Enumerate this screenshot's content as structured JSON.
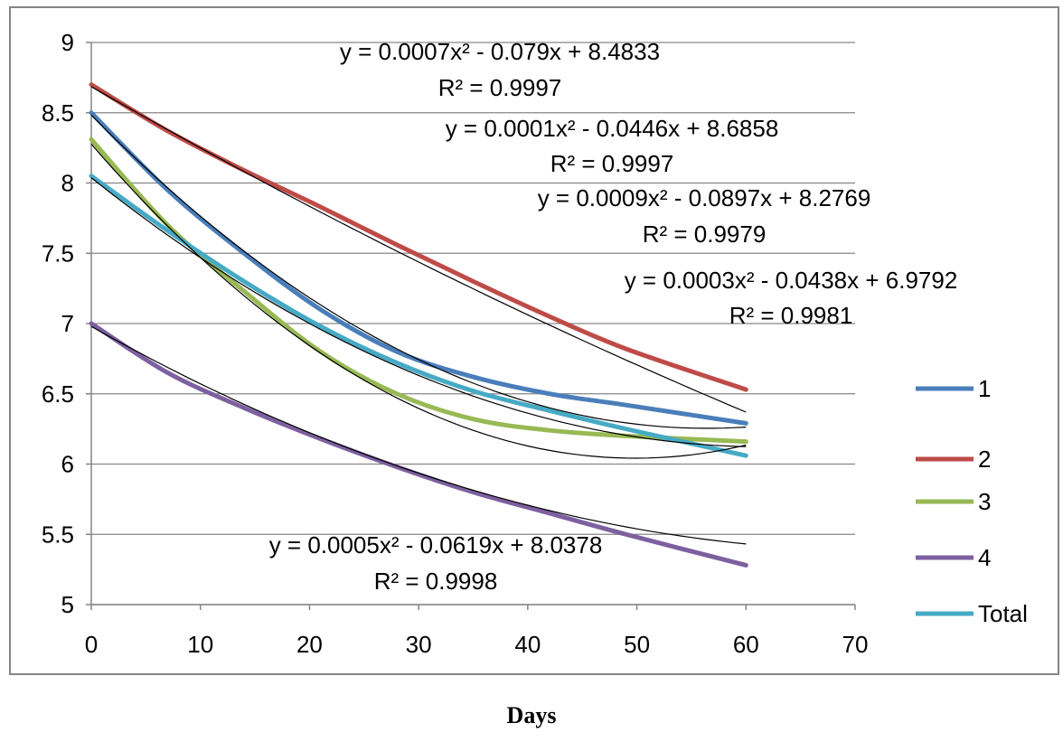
{
  "chart_data": {
    "type": "line",
    "xlabel": "Days",
    "ylabel": "",
    "xlim": [
      0,
      70
    ],
    "ylim": [
      5,
      9
    ],
    "x_ticks": [
      0,
      10,
      20,
      30,
      40,
      50,
      60,
      70
    ],
    "y_ticks": [
      5,
      5.5,
      6,
      6.5,
      7,
      7.5,
      8,
      8.5,
      9
    ],
    "grid": "horizontal",
    "legend_position": "right",
    "series": [
      {
        "name": "1",
        "color": "#4A7EBB",
        "x": [
          0,
          7,
          14,
          21,
          28,
          35,
          42,
          49,
          60
        ],
        "y": [
          8.5,
          7.95,
          7.5,
          7.1,
          6.8,
          6.62,
          6.5,
          6.42,
          6.29
        ]
      },
      {
        "name": "2",
        "color": "#BE4B48",
        "x": [
          0,
          7,
          14,
          21,
          28,
          35,
          42,
          49,
          60
        ],
        "y": [
          8.7,
          8.37,
          8.09,
          7.83,
          7.56,
          7.3,
          7.05,
          6.82,
          6.53
        ]
      },
      {
        "name": "3",
        "color": "#98B954",
        "x": [
          0,
          7,
          14,
          21,
          28,
          35,
          42,
          49,
          60
        ],
        "y": [
          8.31,
          7.7,
          7.23,
          6.8,
          6.5,
          6.32,
          6.24,
          6.2,
          6.16
        ]
      },
      {
        "name": "4",
        "color": "#7D60A0",
        "x": [
          0,
          7,
          14,
          21,
          28,
          35,
          42,
          49,
          60
        ],
        "y": [
          7.0,
          6.65,
          6.4,
          6.18,
          5.98,
          5.8,
          5.65,
          5.5,
          5.28
        ]
      },
      {
        "name": "Total",
        "color": "#46AAC5",
        "x": [
          0,
          7,
          14,
          21,
          28,
          35,
          42,
          49,
          60
        ],
        "y": [
          8.05,
          7.66,
          7.3,
          6.98,
          6.72,
          6.52,
          6.38,
          6.25,
          6.06
        ]
      }
    ],
    "trendlines": [
      {
        "a": 0.0007,
        "b": -0.079,
        "c": 8.4833
      },
      {
        "a": 0.0001,
        "b": -0.0446,
        "c": 8.6858
      },
      {
        "a": 0.0009,
        "b": -0.0897,
        "c": 8.2769
      },
      {
        "a": 0.0003,
        "b": -0.0438,
        "c": 6.9792
      },
      {
        "a": 0.0005,
        "b": -0.0619,
        "c": 8.0378
      }
    ],
    "annotations": [
      {
        "eq": "y = 0.0007x² - 0.079x + 8.4833",
        "r2": "R² = 0.9997"
      },
      {
        "eq": "y = 0.0001x² - 0.0446x + 8.6858",
        "r2": "R² = 0.9997"
      },
      {
        "eq": "y = 0.0009x² - 0.0897x + 8.2769",
        "r2": "R² = 0.9979"
      },
      {
        "eq": "y = 0.0003x² - 0.0438x + 6.9792",
        "r2": "R² = 0.9981"
      },
      {
        "eq": "y = 0.0005x² - 0.0619x + 8.0378",
        "r2": "R² = 0.9998"
      }
    ]
  }
}
